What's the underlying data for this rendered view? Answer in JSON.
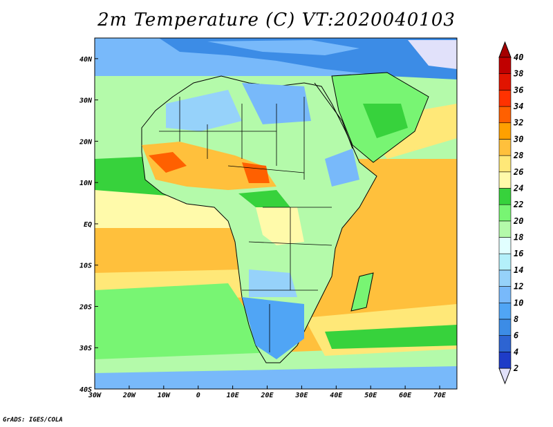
{
  "title": "2m Temperature (C) VT:2020040103",
  "credit": "GrADS: IGES/COLA",
  "map": {
    "lon_range": [
      -30,
      75
    ],
    "lat_range": [
      -40,
      45
    ],
    "x_ticks": [
      "30W",
      "20W",
      "10W",
      "0",
      "10E",
      "20E",
      "30E",
      "40E",
      "50E",
      "60E",
      "70E"
    ],
    "y_ticks": [
      "40N",
      "30N",
      "20N",
      "10N",
      "EQ",
      "10S",
      "20S",
      "30S",
      "40S"
    ],
    "tick_lon": [
      -30,
      -20,
      -10,
      0,
      10,
      20,
      30,
      40,
      50,
      60,
      70
    ],
    "tick_lat": [
      40,
      30,
      20,
      10,
      0,
      -10,
      -20,
      -30,
      -40
    ]
  },
  "colorbar": {
    "labels": [
      "2",
      "4",
      "6",
      "8",
      "10",
      "12",
      "14",
      "16",
      "18",
      "20",
      "22",
      "24",
      "26",
      "28",
      "30",
      "32",
      "34",
      "36",
      "38",
      "40"
    ],
    "colors": [
      "#1e1e96",
      "#1e3cc8",
      "#2d64d2",
      "#3c8ce6",
      "#50a5f5",
      "#78b9fa",
      "#96d2fa",
      "#b4f0fa",
      "#e1ffff",
      "#b4faaa",
      "#78f573",
      "#37d23c",
      "#fffaaa",
      "#ffe878",
      "#ffc03c",
      "#ffa000",
      "#ff6000",
      "#ff3200",
      "#e11400",
      "#c00000",
      "#a50000"
    ],
    "under_color": "#e1e1fa",
    "over_color": "#a50000"
  }
}
